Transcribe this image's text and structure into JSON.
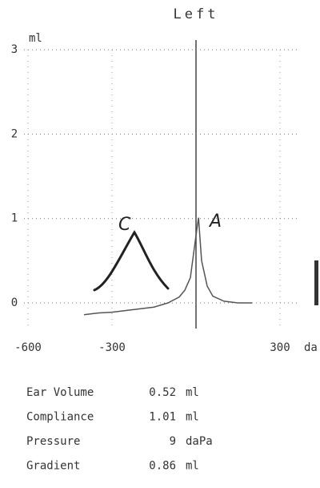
{
  "chart_data": {
    "type": "line",
    "title": "Left",
    "y_label": "ml",
    "x_label": "da",
    "x": [
      -400,
      -350,
      -300,
      -250,
      -200,
      -150,
      -100,
      -60,
      -40,
      -20,
      -10,
      0,
      9,
      20,
      40,
      60,
      100,
      150,
      200
    ],
    "series": [
      {
        "color": "#555555",
        "values": [
          -0.14,
          -0.12,
          -0.11,
          -0.09,
          -0.07,
          -0.05,
          0.0,
          0.07,
          0.15,
          0.3,
          0.55,
          0.8,
          1.01,
          0.5,
          0.2,
          0.08,
          0.02,
          0.0,
          0.0
        ]
      }
    ],
    "xlim": [
      -600,
      400
    ],
    "ylim": [
      -0.2,
      3.1
    ],
    "xticks": [
      -600,
      -300,
      300
    ],
    "yticks": [
      0,
      1,
      2,
      3
    ],
    "grid": true,
    "annotations": [
      "C",
      "A"
    ]
  },
  "measurements": [
    {
      "label": "Ear Volume",
      "value": 0.52,
      "unit": "ml"
    },
    {
      "label": "Compliance",
      "value": 1.01,
      "unit": "ml"
    },
    {
      "label": "Pressure",
      "value": 9,
      "unit": "daPa"
    },
    {
      "label": "Gradient",
      "value": 0.86,
      "unit": "ml"
    }
  ]
}
